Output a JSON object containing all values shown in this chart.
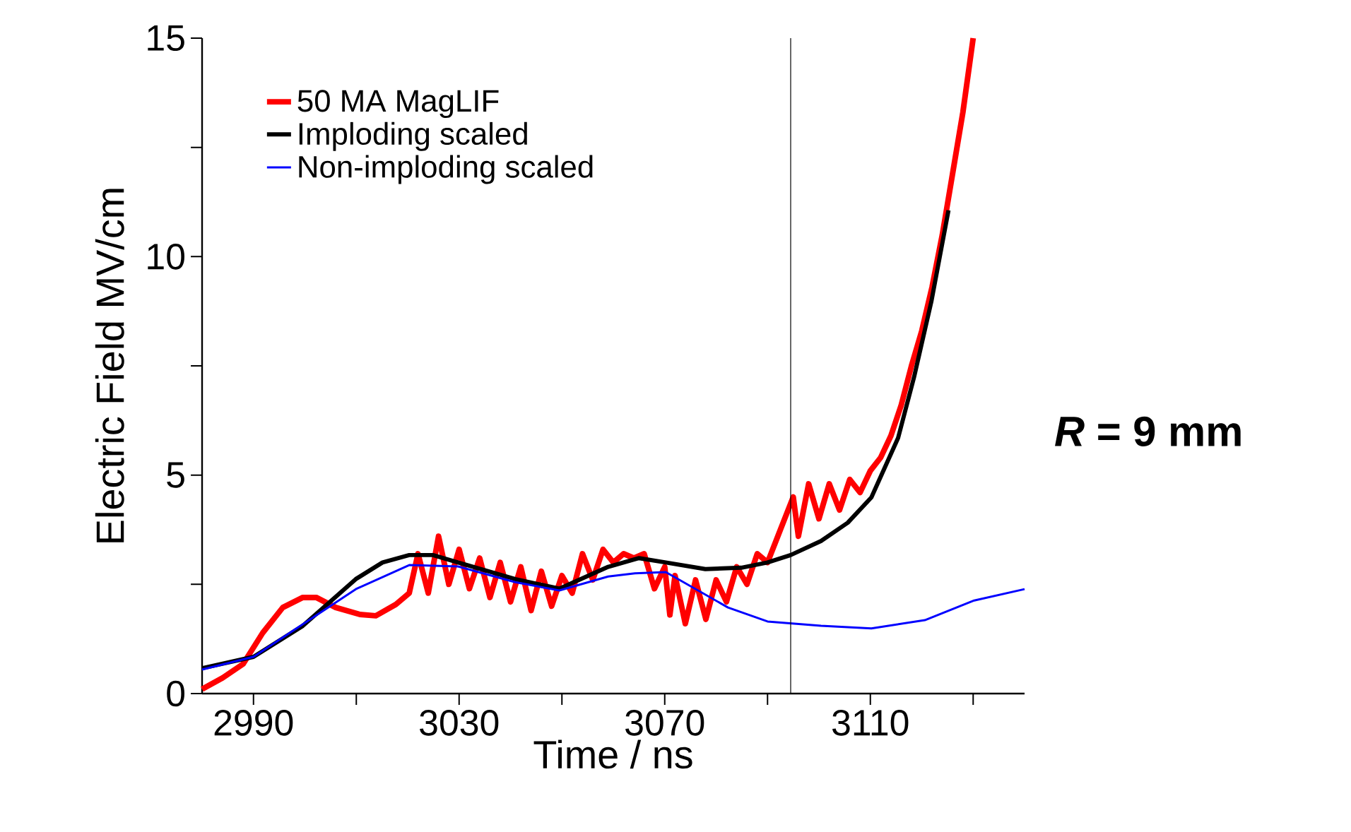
{
  "chart_data": {
    "type": "line",
    "xlabel": "Time / ns",
    "ylabel": "Electric Field MV/cm",
    "annotations": [
      "*R* = 9 mm"
    ],
    "xlim": [
      2980,
      3140
    ],
    "ylim": [
      0,
      15
    ],
    "xticks": [
      2990,
      {
        "value": 3010,
        "label": null
      },
      3030,
      {
        "value": 3050,
        "label": null
      },
      3070,
      {
        "value": 3090,
        "label": null
      },
      3110,
      {
        "value": 3130,
        "label": null
      }
    ],
    "yticks": [
      0,
      {
        "value": 2.5,
        "label": null
      },
      5,
      {
        "value": 7.5,
        "label": null
      },
      10,
      {
        "value": 12.5,
        "label": null
      },
      15
    ],
    "legend": "top left",
    "ref_lines": [
      {
        "axis": "x",
        "value": 3094.5,
        "color": "#000000"
      }
    ],
    "series": [
      {
        "name": "50 MA MagLIF",
        "color": "#ff0000",
        "x": [
          2980,
          2984,
          2988,
          2991.8,
          2995.7,
          2999.6,
          3002.2,
          3006,
          3010.7,
          3013.8,
          3017.7,
          3020.3,
          3022,
          3024,
          3026,
          3028,
          3030,
          3032,
          3034,
          3036,
          3038,
          3040,
          3042,
          3044,
          3046,
          3048,
          3050,
          3052,
          3054,
          3056,
          3058,
          3060,
          3062,
          3064,
          3066,
          3068,
          3070,
          3071,
          3072,
          3074,
          3076,
          3078,
          3080,
          3082,
          3084,
          3086,
          3088,
          3090,
          3092,
          3094,
          3095,
          3096,
          3098,
          3100,
          3102,
          3104,
          3106,
          3108,
          3110,
          3112,
          3114,
          3116,
          3118,
          3120,
          3122,
          3124,
          3126,
          3128,
          3130
        ],
        "values": [
          0.1,
          0.36,
          0.68,
          1.39,
          1.97,
          2.2,
          2.2,
          1.97,
          1.81,
          1.78,
          2.04,
          2.3,
          3.2,
          2.3,
          3.6,
          2.5,
          3.3,
          2.4,
          3.1,
          2.2,
          3.0,
          2.1,
          2.9,
          1.9,
          2.8,
          2.0,
          2.7,
          2.3,
          3.2,
          2.6,
          3.3,
          3.0,
          3.2,
          3.1,
          3.2,
          2.4,
          2.9,
          1.8,
          2.7,
          1.6,
          2.6,
          1.7,
          2.6,
          2.1,
          2.9,
          2.5,
          3.2,
          3.0,
          3.6,
          4.2,
          4.5,
          3.6,
          4.8,
          4.0,
          4.8,
          4.2,
          4.9,
          4.6,
          5.1,
          5.4,
          5.9,
          6.6,
          7.5,
          8.3,
          9.3,
          10.5,
          11.9,
          13.3,
          15
        ]
      },
      {
        "name": "Imploding scaled",
        "color": "#000000",
        "x": [
          2980,
          2990,
          2999.6,
          3009.9,
          3015.1,
          3020.3,
          3024.9,
          3029.8,
          3040.9,
          3049.5,
          3059,
          3065,
          3070.2,
          3077.9,
          3084.9,
          3090,
          3094.5,
          3100.4,
          3105.6,
          3110.2,
          3115.4,
          3118.5,
          3121.9,
          3125.2
        ],
        "values": [
          0.58,
          0.84,
          1.55,
          2.62,
          3.0,
          3.17,
          3.17,
          3.0,
          2.62,
          2.4,
          2.9,
          3.1,
          3.0,
          2.85,
          2.88,
          3.0,
          3.17,
          3.49,
          3.91,
          4.49,
          5.85,
          7.24,
          8.99,
          11.06
        ]
      },
      {
        "name": "Non-imploding scaled",
        "color": "#0000ff",
        "x": [
          2980,
          2990,
          3009.9,
          3020.3,
          3029.8,
          3040.9,
          3049.5,
          3059,
          3064.2,
          3070.2,
          3082.3,
          3090,
          3100.4,
          3110.2,
          3120.6,
          3130.2,
          3140
        ],
        "values": [
          0.55,
          0.84,
          2.39,
          2.94,
          2.91,
          2.55,
          2.36,
          2.68,
          2.75,
          2.78,
          1.97,
          1.65,
          1.55,
          1.49,
          1.68,
          2.13,
          2.39
        ]
      }
    ]
  }
}
